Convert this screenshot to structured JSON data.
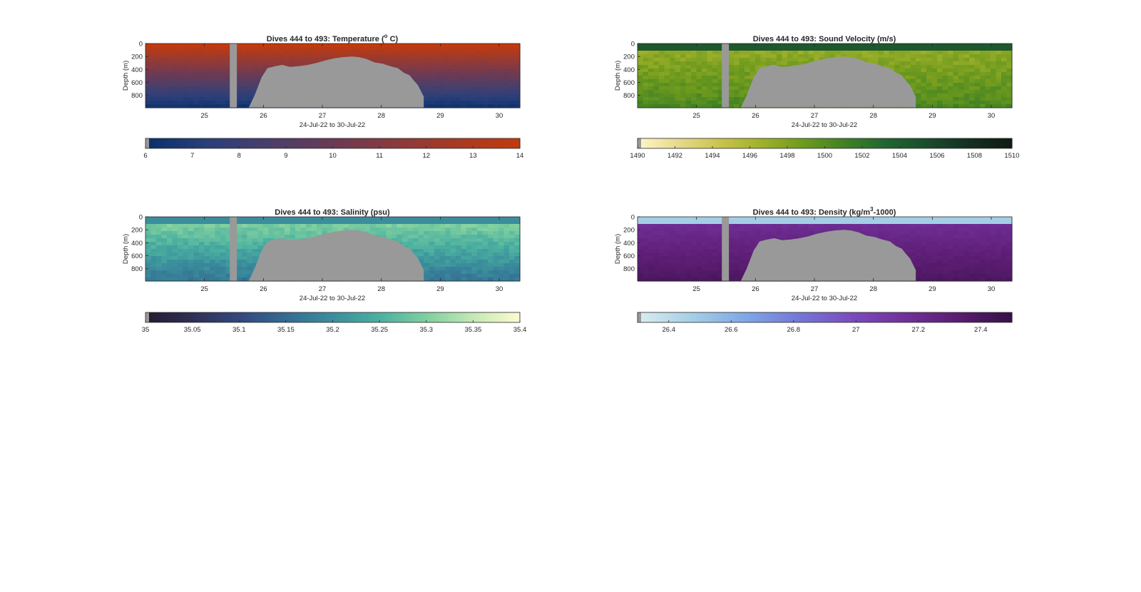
{
  "colors": {
    "background": "#ffffff",
    "axis": "#262626",
    "nodata": "#999999"
  },
  "chart_data": [
    {
      "type": "heatmap",
      "title_main": "Dives 444 to 493: Temperature (",
      "title_sup": "o",
      "title_tail": " C)",
      "xlabel": "24-Jul-22 to 30-Jul-22",
      "ylabel": "Depth (m)",
      "x_ticks": [
        "25",
        "26",
        "27",
        "28",
        "29",
        "30"
      ],
      "y_ticks": [
        "0",
        "200",
        "400",
        "600",
        "800"
      ],
      "xlim": [
        24.0,
        30.35
      ],
      "ylim": [
        0,
        990
      ],
      "colorbar": {
        "ticks": [
          "6",
          "7",
          "8",
          "9",
          "10",
          "11",
          "12",
          "13",
          "14"
        ],
        "range": [
          6,
          14
        ],
        "colormap": [
          "#08306b",
          "#2a3f7a",
          "#4a3f6a",
          "#6a3a55",
          "#8a3a3e",
          "#a83a22",
          "#c23a0e"
        ]
      }
    },
    {
      "type": "heatmap",
      "title_main": "Dives 444 to 493: Sound Velocity (m/s)",
      "title_sup": "",
      "title_tail": "",
      "xlabel": "24-Jul-22 to 30-Jul-22",
      "ylabel": "Depth (m)",
      "x_ticks": [
        "25",
        "26",
        "27",
        "28",
        "29",
        "30"
      ],
      "y_ticks": [
        "0",
        "200",
        "400",
        "600",
        "800"
      ],
      "xlim": [
        24.0,
        30.35
      ],
      "ylim": [
        0,
        990
      ],
      "colorbar": {
        "ticks": [
          "1490",
          "1492",
          "1494",
          "1496",
          "1498",
          "1500",
          "1502",
          "1504",
          "1506",
          "1508",
          "1510"
        ],
        "range": [
          1490,
          1510
        ],
        "colormap": [
          "#fdf7c7",
          "#e6d98a",
          "#c9c34b",
          "#9fb02a",
          "#6e9a1e",
          "#3f8123",
          "#1f6530",
          "#1a4a2c",
          "#142f21",
          "#0f1a14"
        ]
      }
    },
    {
      "type": "heatmap",
      "title_main": "Dives 444 to 493: Salinity (psu)",
      "title_sup": "",
      "title_tail": "",
      "xlabel": "24-Jul-22 to 30-Jul-22",
      "ylabel": "Depth (m)",
      "x_ticks": [
        "25",
        "26",
        "27",
        "28",
        "29",
        "30"
      ],
      "y_ticks": [
        "0",
        "200",
        "400",
        "600",
        "800"
      ],
      "xlim": [
        24.0,
        30.35
      ],
      "ylim": [
        0,
        990
      ],
      "colorbar": {
        "ticks": [
          "35",
          "35.05",
          "35.1",
          "35.15",
          "35.2",
          "35.25",
          "35.3",
          "35.35",
          "35.4"
        ],
        "range": [
          35,
          35.4
        ],
        "colormap": [
          "#241a2e",
          "#2e2f56",
          "#33477d",
          "#356b92",
          "#3a8e9c",
          "#4bb0a0",
          "#7fcf9f",
          "#c4e8b4",
          "#fdfbd2"
        ]
      }
    },
    {
      "type": "heatmap",
      "title_main": "Dives 444 to 493: Density (kg/m",
      "title_sup": "3",
      "title_tail": "-1000)",
      "xlabel": "24-Jul-22 to 30-Jul-22",
      "ylabel": "Depth (m)",
      "x_ticks": [
        "25",
        "26",
        "27",
        "28",
        "29",
        "30"
      ],
      "y_ticks": [
        "0",
        "200",
        "400",
        "600",
        "800"
      ],
      "xlim": [
        24.0,
        30.35
      ],
      "ylim": [
        0,
        990
      ],
      "colorbar": {
        "ticks": [
          "26.4",
          "26.6",
          "26.8",
          "27",
          "27.2",
          "27.4"
        ],
        "range": [
          26.3,
          27.5
        ],
        "colormap": [
          "#dbeef0",
          "#a6cfe6",
          "#7fa8e6",
          "#7478d8",
          "#7a4cbd",
          "#72309a",
          "#5a1c70",
          "#361048"
        ]
      }
    }
  ]
}
